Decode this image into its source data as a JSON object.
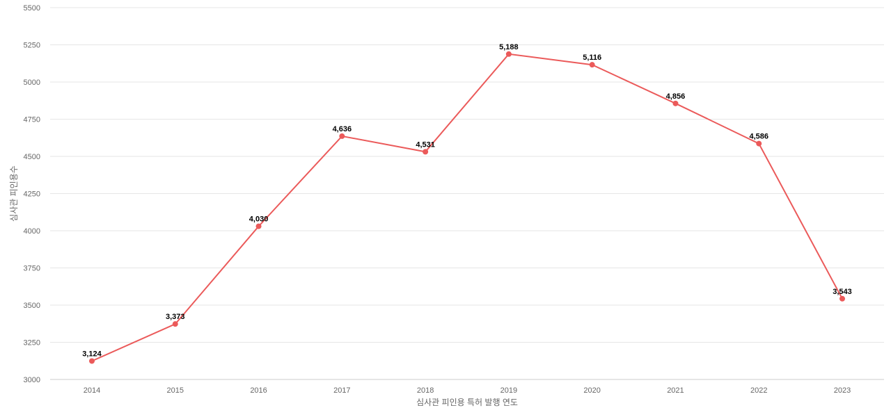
{
  "chart_data": {
    "type": "line",
    "categories": [
      "2014",
      "2015",
      "2016",
      "2017",
      "2018",
      "2019",
      "2020",
      "2021",
      "2022",
      "2023"
    ],
    "series": [
      {
        "values": [
          3124,
          3373,
          4030,
          4636,
          4531,
          5188,
          5116,
          4856,
          4586,
          3543
        ],
        "data_labels": [
          "3,124",
          "3,373",
          "4,030",
          "4,636",
          "4,531",
          "5,188",
          "5,116",
          "4,856",
          "4,586",
          "3,543"
        ],
        "color": "#eb5a5a"
      }
    ],
    "y_ticks": [
      "3000",
      "3250",
      "3500",
      "3750",
      "4000",
      "4250",
      "4500",
      "4750",
      "5000",
      "5250",
      "5500"
    ],
    "ylim": [
      3000,
      5500
    ],
    "xlabel": "심사관 피인용 특허 발행 연도",
    "ylabel": "심사관 피인용수",
    "grid": true,
    "legend": "none"
  }
}
